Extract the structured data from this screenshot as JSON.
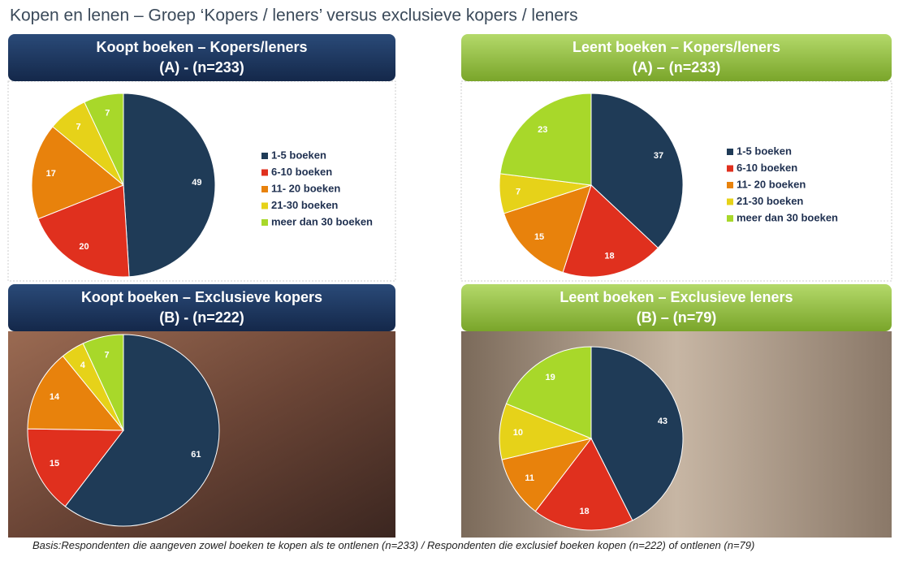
{
  "title": "Kopen en lenen  – Groep ‘Kopers / leners’ versus exclusieve kopers / leners",
  "footnote": "Basis:Respondenten die aangeven zowel boeken te kopen als te ontlenen (n=233) / Respondenten die exclusief boeken kopen (n=222) of ontlenen (n=79)",
  "chart_data": [
    {
      "type": "pie",
      "title": "Koopt boeken – Kopers/leners",
      "subtitle": "(A) - (n=233)",
      "categories": [
        "1-5 boeken",
        "6-10 boeken",
        "11- 20 boeken",
        "21-30 boeken",
        "meer dan 30 boeken"
      ],
      "values": [
        49,
        20,
        17,
        7,
        7
      ],
      "colors": [
        "#1f3b57",
        "#e0301e",
        "#e8820c",
        "#e6d219",
        "#a8d82a"
      ]
    },
    {
      "type": "pie",
      "title": "Leent boeken – Kopers/leners",
      "subtitle": "(A) – (n=233)",
      "categories": [
        "1-5 boeken",
        "6-10 boeken",
        "11- 20 boeken",
        "21-30 boeken",
        "meer dan 30 boeken"
      ],
      "values": [
        37,
        18,
        15,
        7,
        23
      ],
      "colors": [
        "#1f3b57",
        "#e0301e",
        "#e8820c",
        "#e6d219",
        "#a8d82a"
      ]
    },
    {
      "type": "pie",
      "title": "Koopt boeken –  Exclusieve kopers",
      "subtitle": "(B) - (n=222)",
      "values": [
        61,
        15,
        14,
        4,
        7
      ],
      "colors": [
        "#1f3b57",
        "#e0301e",
        "#e8820c",
        "#e6d219",
        "#a8d82a"
      ]
    },
    {
      "type": "pie",
      "title": "Leent boeken – Exclusieve leners",
      "subtitle": "(B) – (n=79)",
      "values": [
        43,
        18,
        11,
        10,
        19
      ],
      "colors": [
        "#1f3b57",
        "#e0301e",
        "#e8820c",
        "#e6d219",
        "#a8d82a"
      ]
    }
  ]
}
